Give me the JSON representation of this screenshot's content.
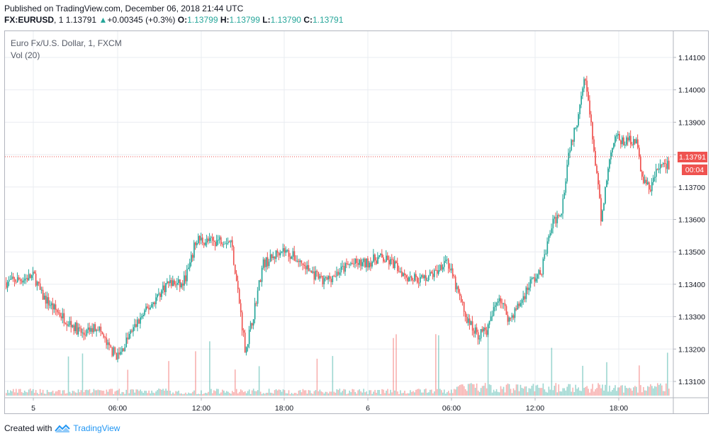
{
  "header": {
    "published": "Published on TradingView.com, December 06, 2018 21:44 UTC",
    "symbol": "FX:EURUSD",
    "interval": "1",
    "last": "1.13791",
    "change": "+0.00345 (+0.3%)",
    "open_label": "O:",
    "open": "1.13799",
    "high_label": "H:",
    "high": "1.13799",
    "low_label": "L:",
    "low": "1.13790",
    "close_label": "C:",
    "close": "1.13791"
  },
  "legend": {
    "title": "Euro Fx/U.S. Dollar, 1, FXCM",
    "volume": "Vol (20)"
  },
  "price_badge": "1.13791",
  "countdown_badge": "00:04",
  "footer": {
    "created_with": "Created with",
    "brand": "TradingView"
  },
  "colors": {
    "up": "#26a69a",
    "down": "#ef5350",
    "grid": "#e9ecf1",
    "price_line": "#ef5350",
    "brand": "#2196f3"
  },
  "chart_data": {
    "type": "candlestick",
    "y_axis": {
      "range": [
        1.1305,
        1.1423
      ],
      "ticks": [
        "1.14100",
        "1.14000",
        "1.13900",
        "1.13800",
        "1.13700",
        "1.13600",
        "1.13500",
        "1.13400",
        "1.13300",
        "1.13200",
        "1.13100"
      ],
      "tick_values": [
        1.141,
        1.14,
        1.139,
        1.138,
        1.137,
        1.136,
        1.135,
        1.134,
        1.133,
        1.132,
        1.131
      ]
    },
    "x_axis": {
      "ticks": [
        "5",
        "06:00",
        "12:00",
        "18:00",
        "6",
        "06:00",
        "12:00",
        "18:00"
      ]
    },
    "current_price": 1.13791,
    "price_path": [
      [
        0,
        1.1342
      ],
      [
        20,
        1.1343
      ],
      [
        40,
        1.1344
      ],
      [
        50,
        1.1338
      ],
      [
        70,
        1.1333
      ],
      [
        90,
        1.1329
      ],
      [
        110,
        1.1325
      ],
      [
        130,
        1.1328
      ],
      [
        145,
        1.1321
      ],
      [
        160,
        1.1318
      ],
      [
        175,
        1.1325
      ],
      [
        190,
        1.133
      ],
      [
        210,
        1.1336
      ],
      [
        230,
        1.1342
      ],
      [
        250,
        1.1341
      ],
      [
        262,
        1.1348
      ],
      [
        270,
        1.1356
      ],
      [
        290,
        1.1355
      ],
      [
        310,
        1.1356
      ],
      [
        320,
        1.1355
      ],
      [
        330,
        1.1338
      ],
      [
        340,
        1.132
      ],
      [
        350,
        1.133
      ],
      [
        365,
        1.1348
      ],
      [
        380,
        1.135
      ],
      [
        390,
        1.1353
      ],
      [
        410,
        1.135
      ],
      [
        430,
        1.1346
      ],
      [
        450,
        1.1342
      ],
      [
        470,
        1.1345
      ],
      [
        490,
        1.1348
      ],
      [
        510,
        1.1348
      ],
      [
        530,
        1.135
      ],
      [
        550,
        1.1348
      ],
      [
        570,
        1.1344
      ],
      [
        590,
        1.1343
      ],
      [
        610,
        1.1345
      ],
      [
        625,
        1.135
      ],
      [
        640,
        1.134
      ],
      [
        655,
        1.133
      ],
      [
        670,
        1.1325
      ],
      [
        685,
        1.1327
      ],
      [
        700,
        1.1338
      ],
      [
        715,
        1.133
      ],
      [
        730,
        1.1335
      ],
      [
        745,
        1.1342
      ],
      [
        760,
        1.1345
      ],
      [
        775,
        1.136
      ],
      [
        790,
        1.1366
      ],
      [
        800,
        1.1385
      ],
      [
        810,
        1.1392
      ],
      [
        822,
        1.141
      ],
      [
        830,
        1.1395
      ],
      [
        838,
        1.138
      ],
      [
        846,
        1.1362
      ],
      [
        855,
        1.1378
      ],
      [
        865,
        1.139
      ],
      [
        875,
        1.1387
      ],
      [
        885,
        1.1388
      ],
      [
        895,
        1.1388
      ],
      [
        905,
        1.1375
      ],
      [
        915,
        1.1372
      ],
      [
        925,
        1.1378
      ],
      [
        935,
        1.1381
      ],
      [
        942,
        1.13791
      ]
    ],
    "volume_bars": 470
  }
}
